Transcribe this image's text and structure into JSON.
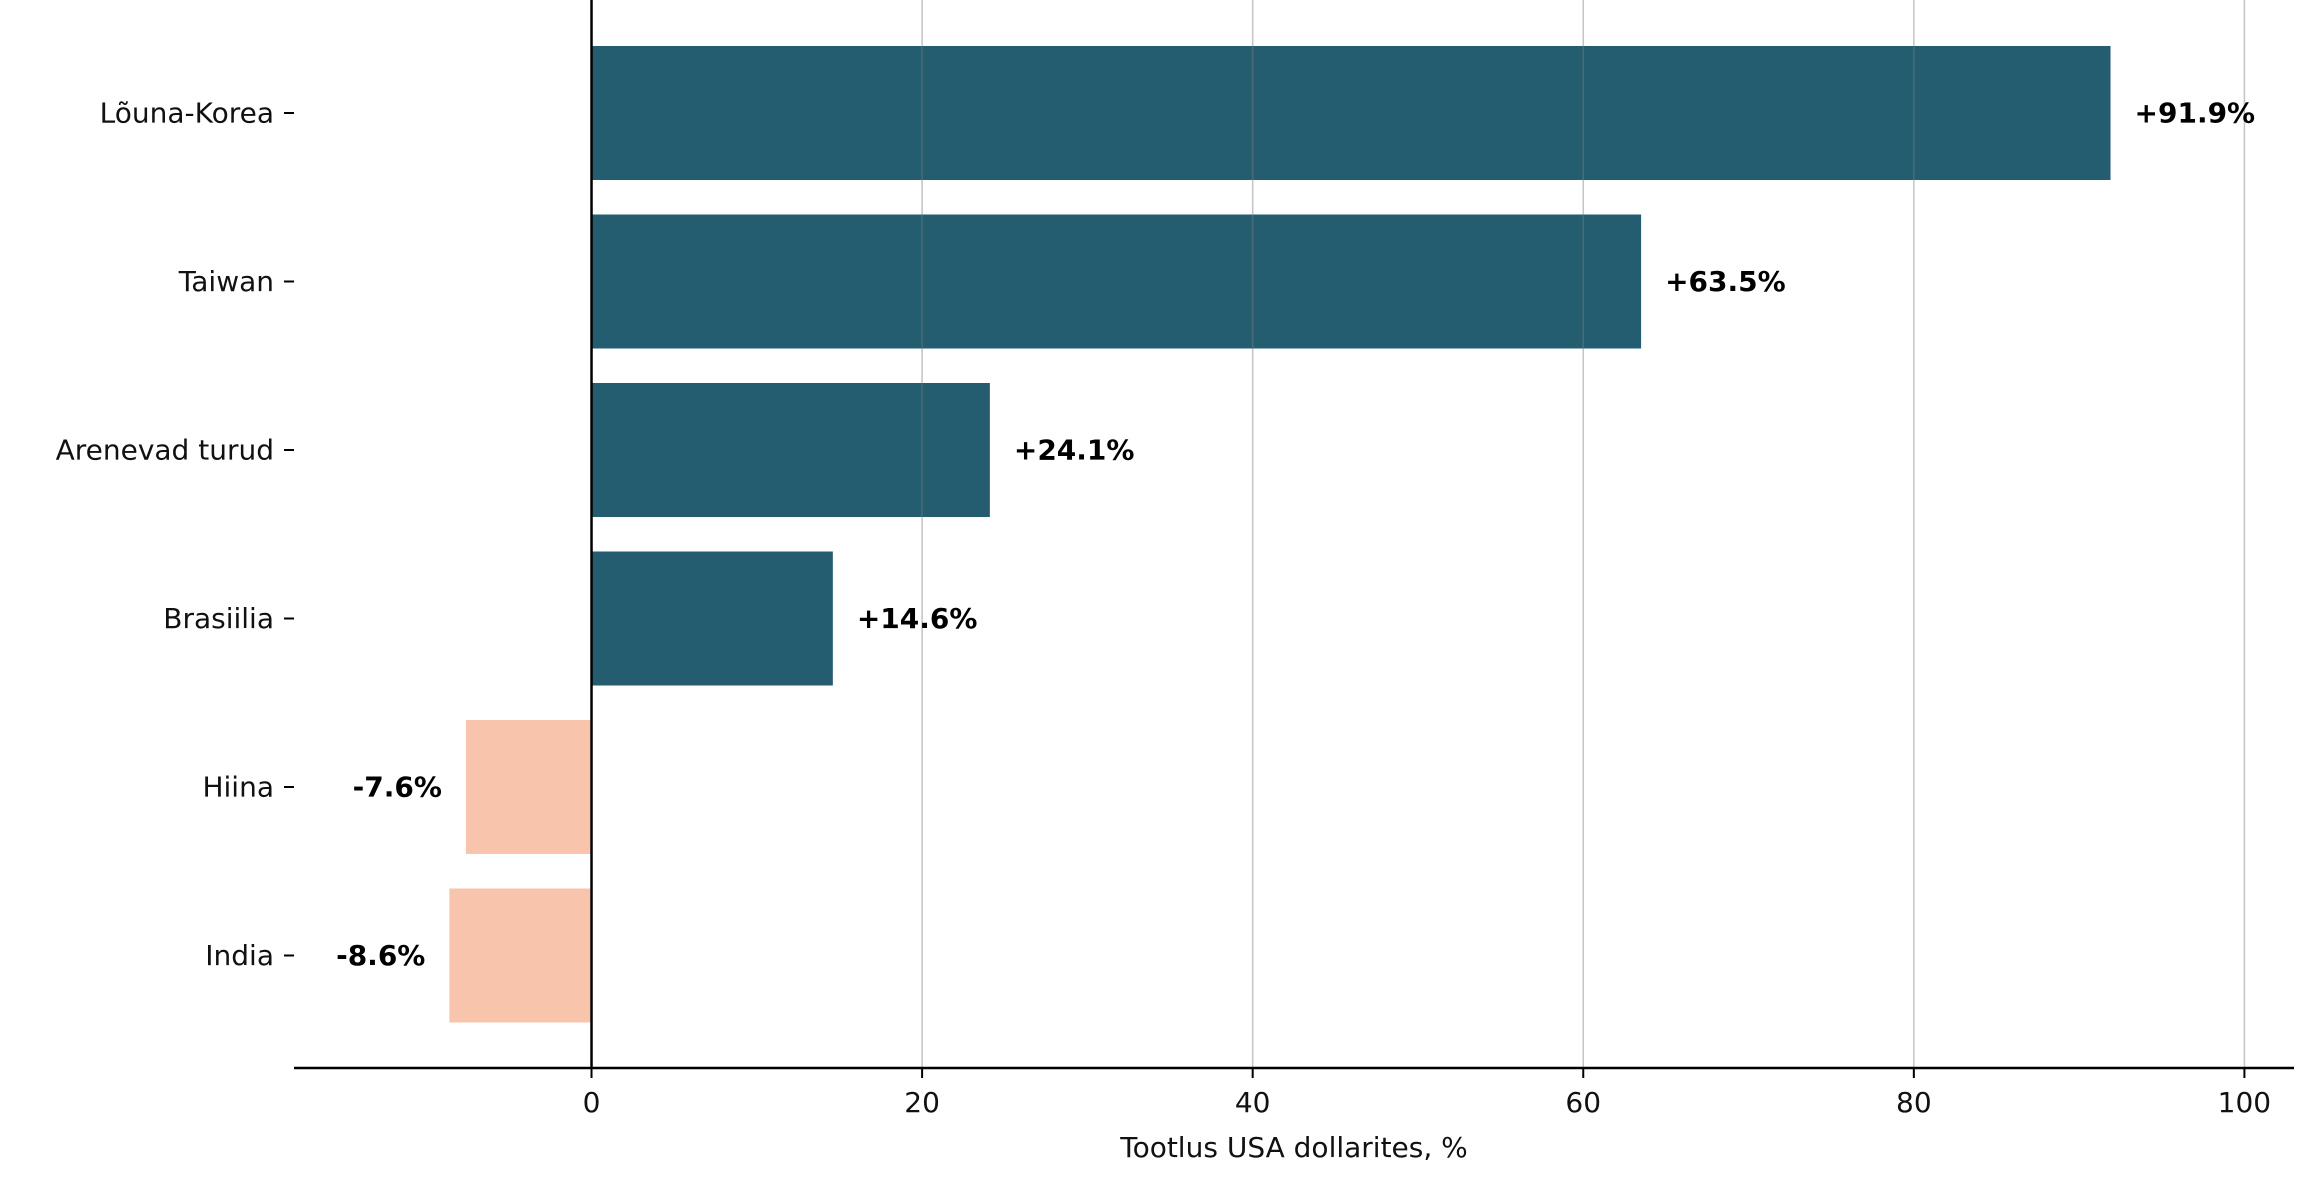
{
  "chart_data": {
    "type": "bar",
    "orientation": "horizontal",
    "categories": [
      "Lõuna-Korea",
      "Taiwan",
      "Arenevad turud",
      "Brasiilia",
      "Hiina",
      "India"
    ],
    "values": [
      91.9,
      63.5,
      24.1,
      14.6,
      -7.6,
      -8.6
    ],
    "value_labels": [
      "+91.9%",
      "+63.5%",
      "+24.1%",
      "+14.6%",
      "-7.6%",
      "-8.6%"
    ],
    "xlabel": "Tootlus USA dollarites, %",
    "ylabel": "",
    "title": "",
    "xlim": [
      -18,
      103
    ],
    "xticks": [
      0,
      20,
      40,
      60,
      80,
      100
    ],
    "grid": "vertical",
    "colors": {
      "positive": "#255d70",
      "negative": "#f9c4ac",
      "grid": "#e6e6e6",
      "axis": "#000000"
    }
  }
}
